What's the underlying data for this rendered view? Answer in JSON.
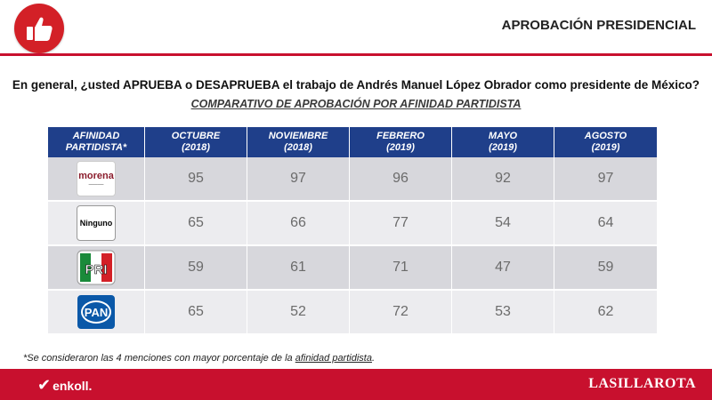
{
  "header": {
    "title": "APROBACIÓN PRESIDENCIAL",
    "logo_icon": "thumbs-up-icon",
    "accent": "#c8102e"
  },
  "question": "En general, ¿usted APRUEBA o DESAPRUEBA el trabajo de Andrés Manuel López Obrador como presidente de México?",
  "subtitle": "COMPARATIVO DE APROBACIÓN POR AFINIDAD PARTIDISTA",
  "table": {
    "header_color": "#1f3f8a",
    "columns": [
      {
        "line1": "AFINIDAD",
        "line2": "PARTIDISTA*"
      },
      {
        "line1": "OCTUBRE",
        "line2": "(2018)"
      },
      {
        "line1": "NOVIEMBRE",
        "line2": "(2018)"
      },
      {
        "line1": "FEBRERO",
        "line2": "(2019)"
      },
      {
        "line1": "MAYO",
        "line2": "(2019)"
      },
      {
        "line1": "AGOSTO",
        "line2": "(2019)"
      }
    ],
    "rows": [
      {
        "party_logo": "morena",
        "logo_text": "morena",
        "values": [
          "95",
          "97",
          "96",
          "92",
          "97"
        ]
      },
      {
        "party_logo": "ninguno",
        "logo_text": "Ninguno",
        "values": [
          "65",
          "66",
          "77",
          "54",
          "64"
        ]
      },
      {
        "party_logo": "pri",
        "logo_text": "PRI",
        "values": [
          "59",
          "61",
          "71",
          "47",
          "59"
        ]
      },
      {
        "party_logo": "pan",
        "logo_text": "PAN",
        "values": [
          "65",
          "52",
          "72",
          "53",
          "62"
        ]
      }
    ]
  },
  "footnote": {
    "prefix": "*Se consideraron las 4 menciones con mayor porcentaje de la ",
    "underlined": "afinidad partidista",
    "suffix": "."
  },
  "footer": {
    "left_brand": "enkoll.",
    "right_brand": "LASILLAROTA"
  }
}
